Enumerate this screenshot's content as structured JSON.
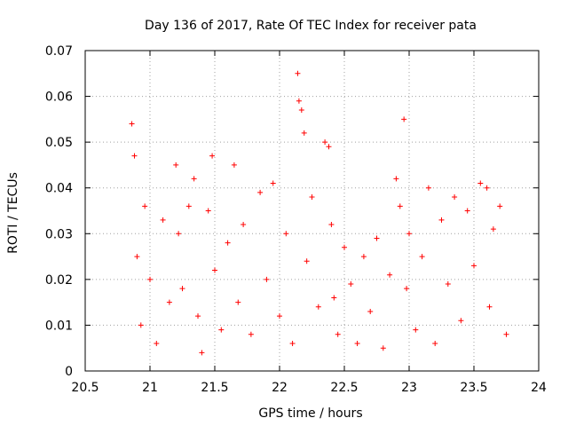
{
  "chart_data": {
    "type": "scatter",
    "title": "Day 136 of 2017, Rate Of TEC Index for receiver pata",
    "xlabel": "GPS time / hours",
    "ylabel": "ROTI / TECUs",
    "xlim": [
      20.5,
      24
    ],
    "ylim": [
      0,
      0.07
    ],
    "x_ticks": [
      20.5,
      21,
      21.5,
      22,
      22.5,
      23,
      23.5,
      24
    ],
    "x_tick_labels": [
      "20.5",
      "21",
      "21.5",
      "22",
      "22.5",
      "23",
      "23.5",
      "24"
    ],
    "y_ticks": [
      0,
      0.01,
      0.02,
      0.03,
      0.04,
      0.05,
      0.06,
      0.07
    ],
    "y_tick_labels": [
      "0",
      "0.01",
      "0.02",
      "0.03",
      "0.04",
      "0.05",
      "0.06",
      "0.07"
    ],
    "grid": true,
    "marker": "plus",
    "marker_color": "#ff0000",
    "series": [
      {
        "x": [
          20.86,
          20.88,
          20.9,
          20.93,
          20.96,
          21.0,
          21.05,
          21.1,
          21.15,
          21.2,
          21.22,
          21.25,
          21.3,
          21.34,
          21.37,
          21.4,
          21.45,
          21.48,
          21.5,
          21.55,
          21.6,
          21.65,
          21.68,
          21.72,
          21.78,
          21.85,
          21.9,
          21.95,
          22.0,
          22.05,
          22.1,
          22.14,
          22.15,
          22.17,
          22.19,
          22.21,
          22.25,
          22.3,
          22.35,
          22.38,
          22.4,
          22.42,
          22.45,
          22.5,
          22.55,
          22.6,
          22.65,
          22.7,
          22.75,
          22.8,
          22.85,
          22.9,
          22.93,
          22.96,
          22.98,
          23.0,
          23.05,
          23.1,
          23.15,
          23.2,
          23.25,
          23.3,
          23.35,
          23.4,
          23.45,
          23.5,
          23.55,
          23.6,
          23.62,
          23.65,
          23.7,
          23.75
        ],
        "y": [
          0.054,
          0.047,
          0.025,
          0.01,
          0.036,
          0.02,
          0.006,
          0.033,
          0.015,
          0.045,
          0.03,
          0.018,
          0.036,
          0.042,
          0.012,
          0.004,
          0.035,
          0.047,
          0.022,
          0.009,
          0.028,
          0.045,
          0.015,
          0.032,
          0.008,
          0.039,
          0.02,
          0.041,
          0.012,
          0.03,
          0.006,
          0.065,
          0.059,
          0.057,
          0.052,
          0.024,
          0.038,
          0.014,
          0.05,
          0.049,
          0.032,
          0.016,
          0.008,
          0.027,
          0.019,
          0.006,
          0.025,
          0.013,
          0.029,
          0.005,
          0.021,
          0.042,
          0.036,
          0.055,
          0.018,
          0.03,
          0.009,
          0.025,
          0.04,
          0.006,
          0.033,
          0.019,
          0.038,
          0.011,
          0.035,
          0.023,
          0.041,
          0.04,
          0.014,
          0.031,
          0.036,
          0.008
        ]
      }
    ]
  }
}
